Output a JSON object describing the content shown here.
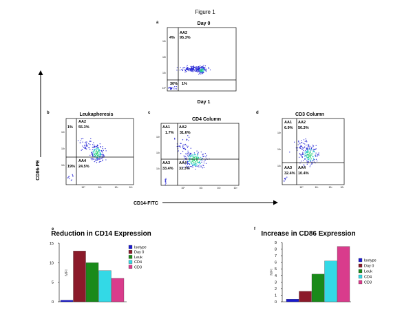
{
  "figure_title": "Figure 1",
  "axis_labels": {
    "y_axis": "CD86-PE",
    "x_axis": "CD14-FITC"
  },
  "panels": {
    "a": {
      "letter": "a",
      "title": "Day 0",
      "subtitle": "Day 1",
      "labels": {
        "ul_pct": "4%",
        "ur_name": "AA2",
        "ur_pct": "95.3%",
        "ll_pct": "30%",
        "lr_pct": "1%"
      }
    },
    "b": {
      "letter": "b",
      "title": "Leukapheresis",
      "labels": {
        "ur_name": "AA2",
        "ul_pct": "1%",
        "ur_pct": "55.3%",
        "lr_name": "AA4",
        "ll_pct": "19%",
        "lr_pct": "24.5%"
      }
    },
    "c": {
      "letter": "c",
      "title": "CD4 Column",
      "labels": {
        "ul_name": "AA1",
        "ur_name": "AA2",
        "ul_pct": "1.7%",
        "ur_pct": "31.6%",
        "ll_name": "AA3",
        "lr_name": "AA4",
        "ll_pct": "33.4%",
        "lr_pct": "33.3%"
      }
    },
    "d": {
      "letter": "d",
      "title": "CD3 Column",
      "labels": {
        "ul_name": "AA1",
        "ur_name": "AA2",
        "ul_pct": "6.9%",
        "ur_pct": "50.3%",
        "ll_name": "AA3",
        "lr_name": "AA4",
        "ll_pct": "32.4%",
        "lr_pct": "10.4%"
      }
    }
  },
  "flow_ticks": {
    "a_y": [
      "10³",
      "10²",
      "10¹",
      "10⁰"
    ],
    "bcd_y": [
      "10³",
      "10²",
      "10¹"
    ],
    "x": [
      "10⁰",
      "10¹",
      "10²",
      "10³"
    ]
  },
  "colors": {
    "isotype": "#1a1ad0",
    "day0": "#8b1a2a",
    "leuk": "#1a8a1a",
    "cd4": "#33d9e6",
    "cd3": "#d93c8c"
  },
  "chart_data": [
    {
      "panel": "e",
      "type": "bar",
      "title": "Reduction in CD14 Expression",
      "ylabel": "MFI",
      "xlabel": "",
      "categories": [
        "Isotype",
        "Day 0",
        "Leuk",
        "CD4",
        "CD3"
      ],
      "values": [
        0.4,
        13,
        10,
        8,
        6
      ],
      "ylim": [
        0,
        15
      ],
      "yticks": [
        0,
        5,
        10,
        15
      ],
      "legend": [
        "Isotype",
        "Day 0",
        "Leuk",
        "CD4",
        "CD3"
      ]
    },
    {
      "panel": "f",
      "type": "bar",
      "title": "Increase in CD86 Expression",
      "ylabel": "MFI",
      "xlabel": "",
      "categories": [
        "Isotype",
        "Day 0",
        "Leuk",
        "CD4",
        "CD3"
      ],
      "values": [
        0.4,
        1.6,
        4.2,
        6.2,
        8.4
      ],
      "ylim": [
        0,
        9
      ],
      "yticks": [
        0,
        1,
        2,
        3,
        4,
        5,
        6,
        7,
        8,
        9
      ],
      "legend": [
        "Isotype",
        "Day 0",
        "Leuk",
        "CD4",
        "CD3"
      ]
    }
  ]
}
